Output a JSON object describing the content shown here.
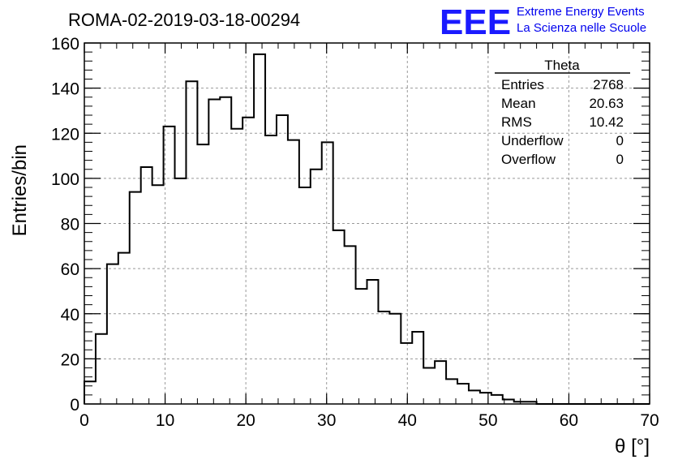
{
  "title": "ROMA-02-2019-03-18-00294",
  "logo": {
    "mark": "EEE",
    "line1": "Extreme Energy Events",
    "line2": "La Scienza nelle Scuole",
    "color": "#1a1aff"
  },
  "stats_box": {
    "title": "Theta",
    "rows": [
      {
        "label": "Entries",
        "value": "2768"
      },
      {
        "label": "Mean",
        "value": "20.63"
      },
      {
        "label": "RMS",
        "value": "10.42"
      },
      {
        "label": "Underflow",
        "value": "0"
      },
      {
        "label": "Overflow",
        "value": "0"
      }
    ]
  },
  "chart_data": {
    "type": "bar",
    "histogram": true,
    "title": "ROMA-02-2019-03-18-00294",
    "xlabel": "θ [°]",
    "ylabel": "Entries/bin",
    "xlim": [
      0,
      70
    ],
    "ylim": [
      0,
      160
    ],
    "grid": true,
    "bin_width": 1.4,
    "x_ticks": [
      "0",
      "10",
      "20",
      "30",
      "40",
      "50",
      "60",
      "70"
    ],
    "y_ticks": [
      "0",
      "20",
      "40",
      "60",
      "80",
      "100",
      "120",
      "140",
      "160"
    ],
    "values": [
      10,
      31,
      62,
      67,
      94,
      105,
      97,
      123,
      100,
      143,
      115,
      135,
      136,
      122,
      127,
      155,
      119,
      128,
      117,
      96,
      104,
      116,
      77,
      70,
      51,
      55,
      41,
      40,
      27,
      32,
      16,
      19,
      11,
      9,
      6,
      5,
      4,
      2,
      1,
      1,
      0,
      0,
      0,
      0,
      0,
      0,
      0,
      0,
      0,
      0
    ]
  }
}
